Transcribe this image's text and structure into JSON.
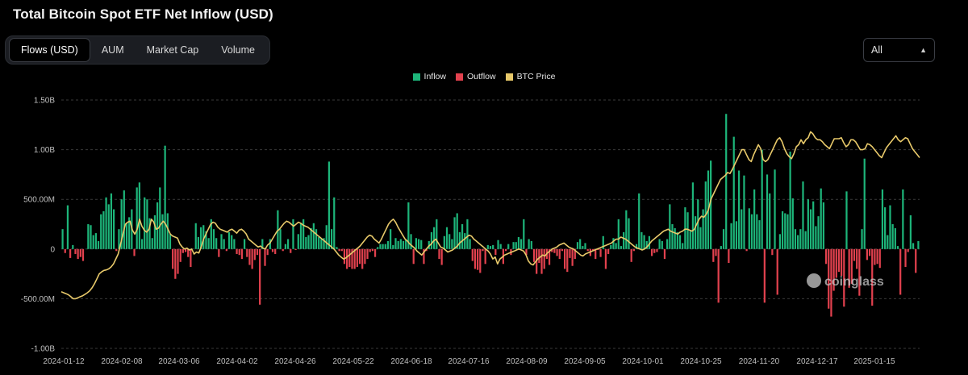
{
  "title": "Total Bitcoin Spot ETF Net Inflow (USD)",
  "tabs": [
    {
      "label": "Flows (USD)",
      "active": true
    },
    {
      "label": "AUM",
      "active": false
    },
    {
      "label": "Market Cap",
      "active": false
    },
    {
      "label": "Volume",
      "active": false
    }
  ],
  "range_select": {
    "value": "All"
  },
  "watermark": "coinglass",
  "colors": {
    "inflow": "#1db57a",
    "outflow": "#e2414e",
    "price": "#e8c96a",
    "grid": "#3a3a3a"
  },
  "legend": [
    {
      "label": "Inflow",
      "color": "#1db57a"
    },
    {
      "label": "Outflow",
      "color": "#e2414e"
    },
    {
      "label": "BTC Price",
      "color": "#e8c96a"
    }
  ],
  "chart_data": {
    "type": "bar",
    "title": "Total Bitcoin Spot ETF Net Inflow (USD)",
    "y_ticks": [
      "1.50B",
      "1.00B",
      "500.00M",
      "0",
      "-500.00M",
      "-1.00B"
    ],
    "ylim": [
      -1000,
      1500
    ],
    "y_unit": "USD millions",
    "x_ticks": [
      "2024-01-12",
      "2024-02-08",
      "2024-03-06",
      "2024-04-02",
      "2024-04-26",
      "2024-05-22",
      "2024-06-18",
      "2024-07-16",
      "2024-08-09",
      "2024-09-05",
      "2024-10-01",
      "2024-10-25",
      "2024-11-20",
      "2024-12-17",
      "2025-01-15"
    ],
    "grid": true,
    "legend_position": "top-center",
    "series": [
      {
        "name": "Inflow / Outflow",
        "kind": "bar",
        "values": [
          200,
          -40,
          440,
          -90,
          40,
          -50,
          -100,
          -80,
          -120,
          0,
          250,
          240,
          140,
          160,
          80,
          350,
          380,
          520,
          450,
          560,
          400,
          -20,
          200,
          500,
          590,
          260,
          320,
          400,
          -70,
          620,
          670,
          100,
          520,
          500,
          310,
          110,
          340,
          470,
          620,
          350,
          1040,
          360,
          150,
          -200,
          -300,
          -250,
          -130,
          -40,
          -30,
          -80,
          -180,
          0,
          260,
          120,
          220,
          240,
          180,
          110,
          300,
          200,
          110,
          -80,
          150,
          100,
          -20,
          170,
          140,
          100,
          -50,
          -60,
          -100,
          100,
          -80,
          -160,
          -200,
          -110,
          -60,
          -560,
          100,
          -170,
          -60,
          100,
          -30,
          -50,
          390,
          200,
          -20,
          50,
          100,
          -40,
          300,
          -10,
          150,
          260,
          300,
          120,
          140,
          210,
          260,
          200,
          120,
          100,
          110,
          240,
          880,
          200,
          520,
          20,
          -20,
          -20,
          -150,
          -200,
          -180,
          -200,
          -200,
          -180,
          -150,
          -200,
          -150,
          -100,
          -30,
          -20,
          -80,
          20,
          50,
          50,
          50,
          80,
          200,
          40,
          110,
          80,
          100,
          80,
          90,
          470,
          150,
          -150,
          110,
          100,
          90,
          -150,
          -20,
          80,
          170,
          220,
          300,
          -100,
          -160,
          130,
          220,
          150,
          100,
          320,
          360,
          170,
          250,
          160,
          300,
          100,
          -120,
          -200,
          -210,
          -240,
          -20,
          -150,
          40,
          30,
          40,
          -60,
          90,
          50,
          -150,
          -20,
          50,
          -60,
          70,
          70,
          120,
          100,
          300,
          -60,
          100,
          80,
          -130,
          -250,
          -140,
          -250,
          -200,
          -100,
          -160,
          -30,
          -40,
          -70,
          -100,
          -20,
          -200,
          -230,
          -90,
          -170,
          -100,
          70,
          100,
          30,
          60,
          -20,
          -70,
          -20,
          -100,
          -10,
          -80,
          130,
          -200,
          -50,
          40,
          110,
          60,
          300,
          30,
          170,
          390,
          310,
          -130,
          -20,
          50,
          560,
          170,
          140,
          80,
          130,
          -70,
          -40,
          -30,
          100,
          80,
          -100,
          100,
          450,
          250,
          210,
          170,
          140,
          60,
          420,
          370,
          180,
          670,
          330,
          500,
          220,
          400,
          680,
          790,
          890,
          -130,
          -70,
          -540,
          30,
          200,
          1360,
          -140,
          260,
          1130,
          280,
          790,
          400,
          740,
          -20,
          410,
          350,
          600,
          350,
          290,
          1000,
          -540,
          750,
          560,
          -60,
          800,
          -460,
          150,
          380,
          360,
          350,
          980,
          510,
          200,
          140,
          200,
          680,
          180,
          500,
          400,
          480,
          230,
          330,
          610,
          470,
          -150,
          -600,
          -680,
          -420,
          -290,
          -230,
          -270,
          -580,
          580,
          -390,
          -350,
          -120,
          -200,
          -470,
          200,
          910,
          -110,
          -70,
          -570,
          -160,
          -150,
          -190,
          600,
          420,
          140,
          440,
          250,
          210,
          30,
          -460,
          600,
          -180,
          -30,
          340,
          60,
          -240,
          80
        ]
      },
      {
        "name": "BTC Price",
        "kind": "line",
        "values": [
          -430,
          -440,
          -450,
          -460,
          -480,
          -500,
          -500,
          -490,
          -480,
          -470,
          -455,
          -440,
          -420,
          -390,
          -350,
          -300,
          -250,
          -230,
          -215,
          -210,
          -200,
          -180,
          -150,
          -100,
          -50,
          50,
          150,
          250,
          270,
          280,
          190,
          150,
          200,
          300,
          230,
          190,
          170,
          200,
          300,
          270,
          200,
          210,
          250,
          280,
          250,
          200,
          150,
          130,
          120,
          110,
          50,
          20,
          0,
          10,
          -10,
          0,
          -50,
          -30,
          -40,
          20,
          100,
          150,
          200,
          250,
          270,
          260,
          220,
          200,
          190,
          180,
          170,
          190,
          200,
          180,
          160,
          190,
          200,
          180,
          150,
          100,
          80,
          60,
          40,
          20,
          30,
          10,
          0,
          40,
          60,
          100,
          140,
          180,
          200,
          230,
          260,
          280,
          270,
          250,
          230,
          250,
          270,
          260,
          240,
          230,
          220,
          200,
          180,
          160,
          140,
          120,
          100,
          80,
          60,
          40,
          20,
          0,
          -30,
          -60,
          -80,
          -100,
          -90,
          -70,
          -50,
          -30,
          -10,
          10,
          30,
          60,
          90,
          120,
          140,
          130,
          100,
          80,
          60,
          100,
          150,
          200,
          250,
          280,
          300,
          270,
          220,
          180,
          140,
          100,
          80,
          50,
          30,
          10,
          -20,
          -40,
          -60,
          -30,
          0,
          30,
          50,
          80,
          100,
          60,
          20,
          10,
          -10,
          -30,
          -20,
          -10,
          10,
          30,
          60,
          80,
          100,
          120,
          140,
          130,
          100,
          80,
          60,
          40,
          20,
          0,
          -20,
          -50,
          -100,
          -80,
          -150,
          -100,
          -80,
          -60,
          -50,
          -40,
          -30,
          -20,
          -10,
          0,
          -10,
          -20,
          -60,
          -120,
          -150,
          -160,
          -130,
          -100,
          -80,
          -60,
          -70,
          -40,
          -20,
          0,
          10,
          20,
          40,
          50,
          60,
          40,
          20,
          10,
          0,
          -20,
          -40,
          -60,
          -70,
          -50,
          -40,
          -30,
          -20,
          -10,
          0,
          10,
          20,
          30,
          40,
          50,
          60,
          80,
          100,
          100,
          120,
          110,
          100,
          80,
          60,
          40,
          20,
          10,
          0,
          -10,
          0,
          20,
          50,
          80,
          100,
          120,
          140,
          160,
          180,
          190,
          200,
          180,
          170,
          160,
          150,
          170,
          180,
          200,
          200,
          190,
          180,
          200,
          250,
          300,
          330,
          320,
          350,
          400,
          500,
          550,
          600,
          650,
          700,
          720,
          740,
          770,
          760,
          800,
          850,
          900,
          950,
          1000,
          1000,
          950,
          900,
          880,
          950,
          1000,
          1050,
          1010,
          900,
          880,
          900,
          950,
          1000,
          1050,
          1100,
          1120,
          1080,
          1010,
          960,
          930,
          910,
          960,
          1030,
          1050,
          1100,
          1060,
          1100,
          1120,
          1180,
          1160,
          1120,
          1100,
          1100,
          1080,
          1050,
          1030,
          1010,
          1060,
          1110,
          1110,
          1110,
          1120,
          1070,
          1030,
          1050,
          1100,
          1100,
          1080,
          1040,
          1000,
          1000,
          1010,
          1060,
          1050,
          1030,
          1000,
          970,
          940,
          920,
          970,
          1020,
          1050,
          1080,
          1110,
          1140,
          1100,
          1080,
          1100,
          1120,
          1110,
          1060,
          1010,
          980,
          950,
          920
        ]
      }
    ]
  }
}
